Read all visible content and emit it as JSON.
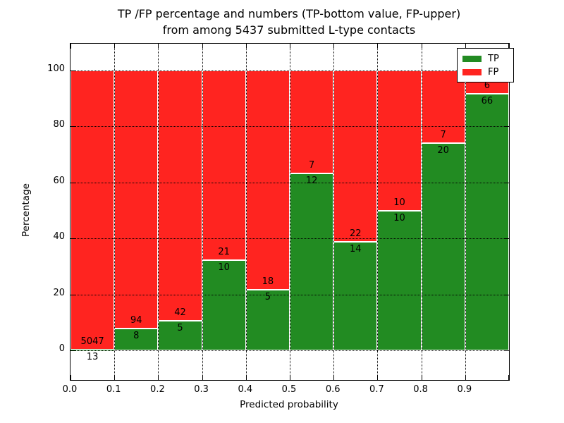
{
  "figure": {
    "title_line1": "TP /FP percentage and numbers (TP-bottom value, FP-upper)",
    "title_line2": "from among 5437 submitted L-type contacts",
    "xlabel": "Predicted probability",
    "ylabel": "Percentage"
  },
  "legend": {
    "position": "upper right",
    "items": [
      {
        "label": "TP",
        "color": "#228b22"
      },
      {
        "label": "FP",
        "color": "#ff2420"
      }
    ]
  },
  "chart_data": {
    "type": "bar",
    "stacking": "percent",
    "title": "TP /FP percentage and numbers (TP-bottom value, FP-upper) from among 5437 submitted L-type contacts",
    "xlabel": "Predicted probability",
    "ylabel": "Percentage",
    "total_contacts": 5437,
    "bin_width": 0.1,
    "x_tick_labels": [
      "0.0",
      "0.1",
      "0.2",
      "0.3",
      "0.4",
      "0.5",
      "0.6",
      "0.7",
      "0.8",
      "0.9"
    ],
    "y_ticks": [
      0,
      20,
      40,
      60,
      80,
      100
    ],
    "xlim": [
      0.0,
      1.0
    ],
    "ylim": [
      -10,
      110
    ],
    "grid": "dotted",
    "legend_position": "upper right",
    "categories": [
      "0.0-0.1",
      "0.1-0.2",
      "0.2-0.3",
      "0.3-0.4",
      "0.4-0.5",
      "0.5-0.6",
      "0.6-0.7",
      "0.7-0.8",
      "0.8-0.9",
      "0.9-1.0"
    ],
    "series": [
      {
        "name": "TP",
        "color": "#228b22",
        "values": [
          13,
          8,
          5,
          10,
          5,
          12,
          14,
          10,
          20,
          66
        ]
      },
      {
        "name": "FP",
        "color": "#ff2420",
        "values": [
          5047,
          94,
          42,
          21,
          18,
          7,
          22,
          10,
          7,
          6
        ]
      }
    ],
    "tp_percent": [
      0.26,
      7.84,
      10.64,
      32.26,
      21.74,
      63.16,
      38.89,
      50.0,
      74.07,
      91.67
    ],
    "annotation_rule": "FP count printed above TP/FP boundary, TP count printed below boundary"
  },
  "colors": {
    "tp": "#228b22",
    "fp": "#ff2420",
    "grid": "#000000",
    "text": "#000000",
    "background": "#ffffff",
    "bar_edge": "#ffffff"
  }
}
